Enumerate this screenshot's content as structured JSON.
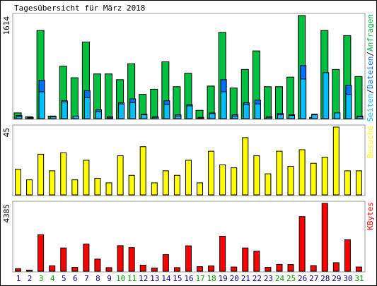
{
  "chart_data": {
    "type": "bar",
    "title": "Tagesübersicht für März 2018",
    "categories": [
      "1",
      "2",
      "3",
      "4",
      "5",
      "6",
      "7",
      "8",
      "9",
      "10",
      "11",
      "12",
      "13",
      "14",
      "15",
      "16",
      "17",
      "18",
      "19",
      "20",
      "21",
      "22",
      "23",
      "24",
      "25",
      "26",
      "27",
      "28",
      "29",
      "30",
      "31"
    ],
    "weekend_days": [
      "3",
      "4",
      "10",
      "11",
      "17",
      "18",
      "24",
      "25",
      "31"
    ],
    "panels": [
      {
        "id": "requests",
        "ylabel": "1614",
        "ymax": 1614,
        "legend": [
          "Seiten",
          "/",
          "Dateien",
          "/",
          "Anfragen"
        ],
        "series": [
          {
            "name": "Anfragen",
            "color": "#00c040",
            "values": [
              90,
              30,
              1380,
              40,
              820,
              640,
              1200,
              700,
              700,
              610,
              860,
              380,
              460,
              890,
              500,
              710,
              130,
              510,
              1350,
              480,
              770,
              1060,
              500,
              500,
              650,
              1614,
              20,
              1380,
              770,
              1300,
              660
            ]
          },
          {
            "name": "Dateien",
            "color": "#0070ff",
            "values": [
              50,
              20,
              600,
              40,
              280,
              0,
              440,
              140,
              30,
              250,
              310,
              70,
              30,
              280,
              60,
              220,
              20,
              90,
              610,
              60,
              250,
              290,
              30,
              80,
              60,
              830,
              70,
              0,
              0,
              520,
              40
            ]
          },
          {
            "name": "Seiten",
            "color": "#00c0ff",
            "values": [
              30,
              10,
              420,
              30,
              260,
              40,
              330,
              110,
              10,
              230,
              250,
              60,
              20,
              220,
              40,
              200,
              10,
              80,
              420,
              40,
              220,
              230,
              20,
              60,
              50,
              620,
              60,
              720,
              90,
              380,
              30
            ]
          }
        ]
      },
      {
        "id": "visits",
        "ylabel": "45",
        "ymax": 45,
        "legend": [
          "Besuche"
        ],
        "series": [
          {
            "name": "Besuche",
            "color": "#ffff00",
            "values": [
              17,
              10,
              27,
              16,
              28,
              10,
              23,
              11,
              8,
              26,
              13,
              32,
              8,
              16,
              13,
              23,
              8,
              29,
              20,
              18,
              38,
              26,
              14,
              29,
              19,
              30,
              21,
              25,
              45,
              16,
              16
            ]
          }
        ]
      },
      {
        "id": "volume",
        "ylabel": "4385",
        "ymax": 4385,
        "legend": [
          "KBytes"
        ],
        "series": [
          {
            "name": "KBytes",
            "color": "#ff0000",
            "values": [
              150,
              70,
              2360,
              350,
              1500,
              250,
              1750,
              780,
              230,
              1650,
              1520,
              390,
              200,
              1070,
              230,
              1640,
              290,
              340,
              2260,
              270,
              1500,
              1300,
              250,
              440,
              430,
              3530,
              360,
              4385,
              550,
              2030,
              270
            ]
          }
        ]
      }
    ]
  },
  "colors": {
    "frame": "#000000",
    "panel_border": "#999999",
    "outline": "#000000",
    "weekday_label": "#000080",
    "weekend_label": "#00a000"
  }
}
